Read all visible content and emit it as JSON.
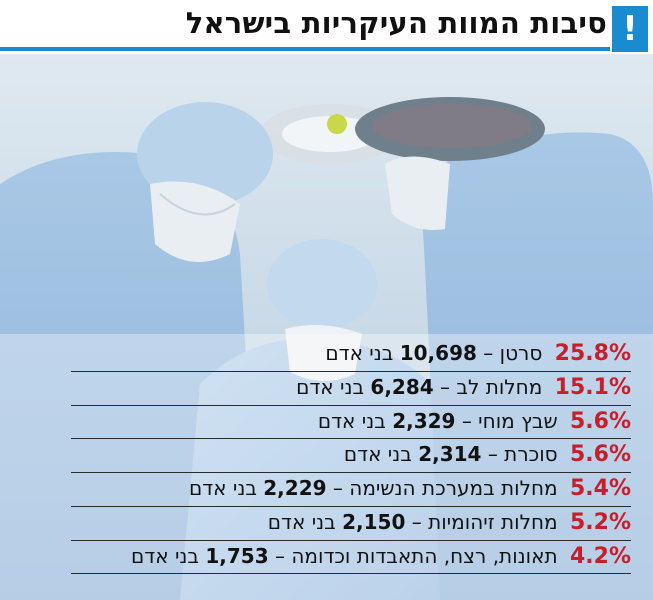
{
  "header": {
    "title": "סיבות המוות העיקריות בישראל",
    "alert_icon": "!"
  },
  "colors": {
    "accent_blue": "#1a8bd0",
    "percent_red": "#c61f2a",
    "text": "#121212"
  },
  "chart_data": {
    "type": "table",
    "columns": [
      "percent",
      "cause",
      "count",
      "unit"
    ],
    "rows": [
      {
        "percent": "25.8%",
        "cause": "סרטן –",
        "count": "10,698",
        "unit": "בני אדם"
      },
      {
        "percent": "15.1%",
        "cause": "מחלות לב –",
        "count": "6,284",
        "unit": "בני אדם"
      },
      {
        "percent": "5.6%",
        "cause": "שבץ מוחי –",
        "count": "2,329",
        "unit": "בני אדם"
      },
      {
        "percent": "5.6%",
        "cause": "סוכרת –",
        "count": "2,314",
        "unit": "בני אדם"
      },
      {
        "percent": "5.4%",
        "cause": "מחלות במערכת הנשימה –",
        "count": "2,229",
        "unit": "בני אדם"
      },
      {
        "percent": "5.2%",
        "cause": "מחלות זיהומיות –",
        "count": "2,150",
        "unit": "בני אדם"
      },
      {
        "percent": "4.2%",
        "cause": "תאונות, רצח, התאבדות וכדומה –",
        "count": "1,753",
        "unit": "בני אדם"
      }
    ]
  }
}
